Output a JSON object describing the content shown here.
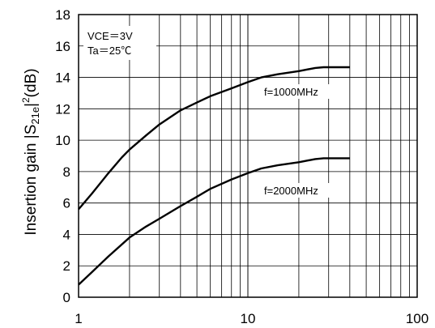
{
  "chart_data": {
    "type": "line",
    "x_scale": "log",
    "xlim": [
      1,
      100
    ],
    "ylim": [
      0,
      18
    ],
    "x_ticks": [
      "1",
      "10",
      "100"
    ],
    "y_ticks": [
      "0",
      "2",
      "4",
      "6",
      "8",
      "10",
      "12",
      "14",
      "16",
      "18"
    ],
    "xlabel": "",
    "ylabel": {
      "pre": "Insertion gain |S",
      "sub": "21e",
      "post": "|",
      "sup": "2",
      "tail": "(dB)"
    },
    "grid": true,
    "annotation": {
      "line1": "VCE＝3V",
      "line2": "Ta＝25℃"
    },
    "series": [
      {
        "name": "f=1000MHz",
        "x": [
          1,
          1.2,
          1.5,
          1.8,
          2,
          2.5,
          3,
          4,
          5,
          6,
          8,
          10,
          12,
          15,
          20,
          25,
          28,
          40
        ],
        "y": [
          5.6,
          6.6,
          7.9,
          8.9,
          9.4,
          10.3,
          11.0,
          11.9,
          12.4,
          12.8,
          13.3,
          13.7,
          14.0,
          14.2,
          14.4,
          14.6,
          14.65,
          14.65
        ]
      },
      {
        "name": "f=2000MHz",
        "x": [
          1,
          1.2,
          1.5,
          2,
          2.5,
          3,
          4,
          5,
          6,
          8,
          10,
          12,
          15,
          20,
          25,
          28,
          40
        ],
        "y": [
          0.8,
          1.6,
          2.6,
          3.8,
          4.5,
          5.0,
          5.8,
          6.4,
          6.9,
          7.5,
          7.9,
          8.2,
          8.4,
          8.6,
          8.8,
          8.85,
          8.85
        ]
      }
    ]
  }
}
